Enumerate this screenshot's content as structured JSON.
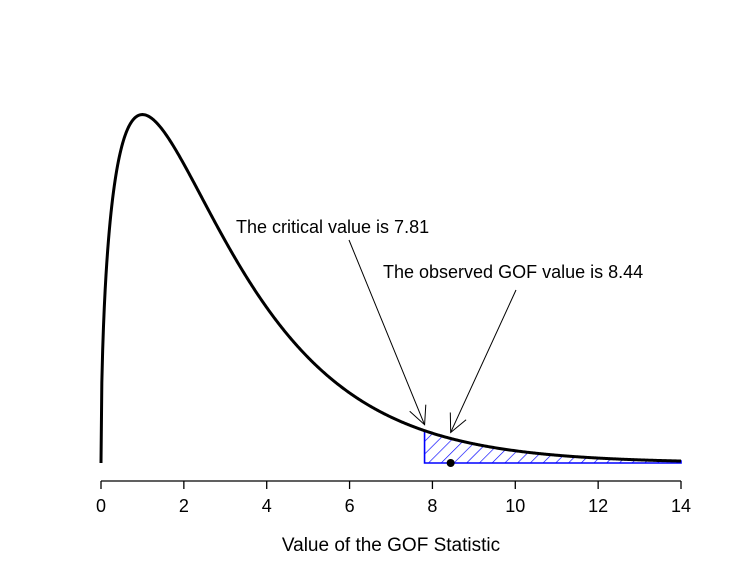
{
  "chart_data": {
    "type": "area",
    "title": "",
    "xlabel": "Value of the GOF Statistic",
    "ylabel": "",
    "xlim": [
      0,
      14
    ],
    "ylim": [
      0,
      0.25
    ],
    "x_ticks": [
      "0",
      "2",
      "4",
      "6",
      "8",
      "10",
      "12",
      "14"
    ],
    "series": [
      {
        "distribution": "chi-square",
        "df": 3,
        "x_range": [
          0,
          14
        ],
        "color": "#000000"
      }
    ],
    "shaded_region": {
      "from": 7.81,
      "to": 14,
      "color": "#0000ff",
      "pattern": "diagonal-hatch"
    },
    "observed_point": {
      "x": 8.44,
      "y": 0
    },
    "annotations": [
      {
        "text": "The critical value is 7.81",
        "x": 7.81
      },
      {
        "text": "The observed GOF value is 8.44",
        "x": 8.44
      }
    ]
  }
}
